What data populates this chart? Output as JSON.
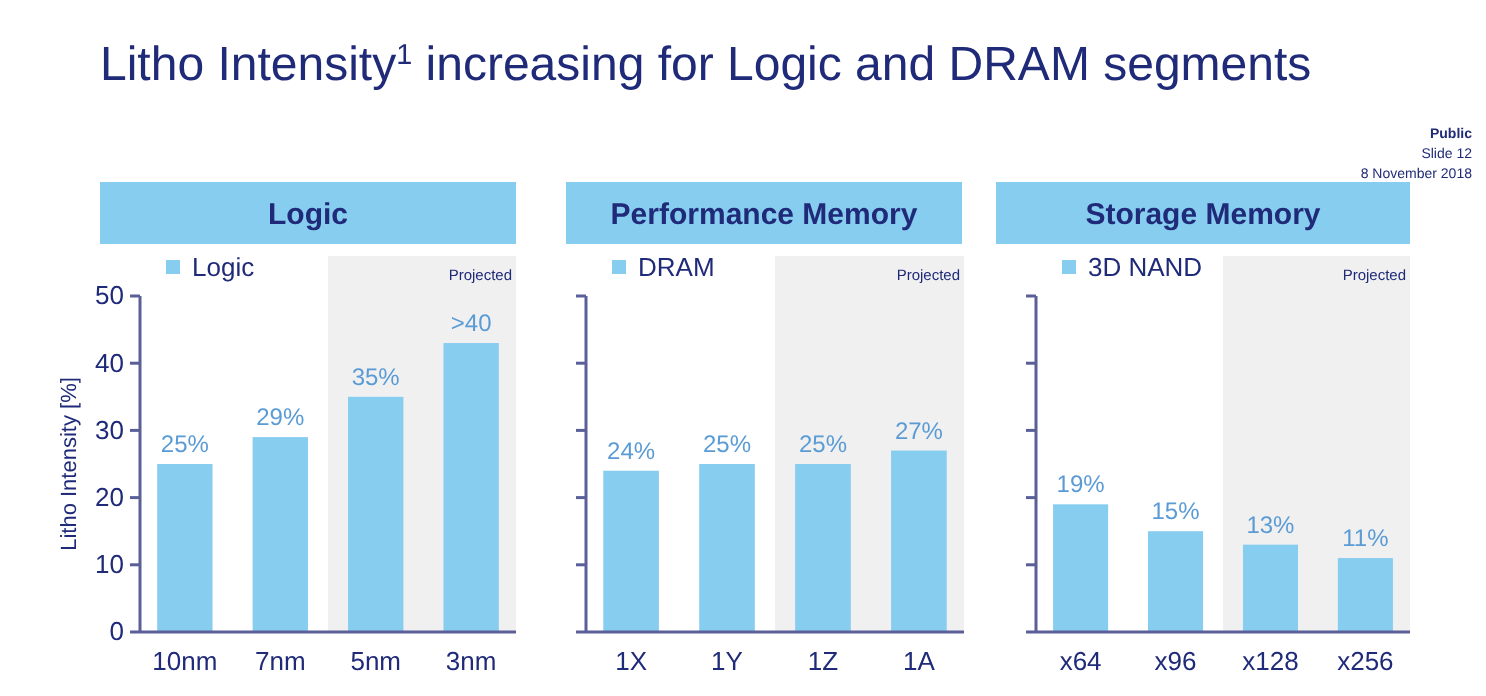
{
  "chart_data": [
    {
      "type": "bar",
      "title": "Logic",
      "ylabel": "Litho Intensity [%]",
      "categories": [
        "10nm",
        "7nm",
        "5nm",
        "3nm"
      ],
      "series": [
        {
          "name": "Logic",
          "color": "#87cdf0",
          "values": [
            25,
            29,
            35,
            43
          ],
          "value_labels": [
            "25%",
            "29%",
            "35%",
            ">40"
          ]
        }
      ],
      "ylim": [
        0,
        50
      ],
      "yticks": [
        0,
        10,
        20,
        30,
        40,
        50
      ],
      "legend": "top left",
      "bands": [
        {
          "axis": "x",
          "from": "5nm",
          "to": "3nm",
          "label": "Projected",
          "color": "#f0f0f0"
        }
      ],
      "annotations": [
        "Litho Intensity$^{1}$ increasing for Logic and DRAM segments",
        "Public",
        "Slide 12",
        "8 November 2018"
      ]
    },
    {
      "type": "bar",
      "title": "Performance Memory",
      "categories": [
        "1X",
        "1Y",
        "1Z",
        "1A"
      ],
      "series": [
        {
          "name": "DRAM",
          "color": "#87cdf0",
          "values": [
            24,
            25,
            25,
            27
          ],
          "value_labels": [
            "24%",
            "25%",
            "25%",
            "27%"
          ]
        }
      ],
      "ylim": [
        0,
        50
      ],
      "yticks": [
        {
          "value": 0,
          "label": null
        },
        {
          "value": 10,
          "label": null
        },
        {
          "value": 20,
          "label": null
        },
        {
          "value": 30,
          "label": null
        },
        {
          "value": 40,
          "label": null
        },
        {
          "value": 50,
          "label": null
        }
      ],
      "tick_labels": "x",
      "legend": "top left",
      "bands": [
        {
          "axis": "x",
          "from": "1Z",
          "to": "1A",
          "label": "Projected",
          "color": "#f0f0f0"
        }
      ]
    },
    {
      "type": "bar",
      "title": "Storage Memory",
      "categories": [
        "x64",
        "x96",
        "x128",
        "x256"
      ],
      "series": [
        {
          "name": "3D NAND",
          "color": "#87cdf0",
          "values": [
            19,
            15,
            13,
            11
          ],
          "value_labels": [
            "19%",
            "15%",
            "13%",
            "11%"
          ]
        }
      ],
      "ylim": [
        0,
        50
      ],
      "yticks": [
        {
          "value": 0,
          "label": null
        },
        {
          "value": 10,
          "label": null
        },
        {
          "value": 20,
          "label": null
        },
        {
          "value": 30,
          "label": null
        },
        {
          "value": 40,
          "label": null
        },
        {
          "value": 50,
          "label": null
        }
      ],
      "tick_labels": "x",
      "legend": "top left",
      "bands": [
        {
          "axis": "x",
          "from": "x128",
          "to": "x256",
          "label": "Projected",
          "color": "#f0f0f0"
        }
      ]
    }
  ]
}
